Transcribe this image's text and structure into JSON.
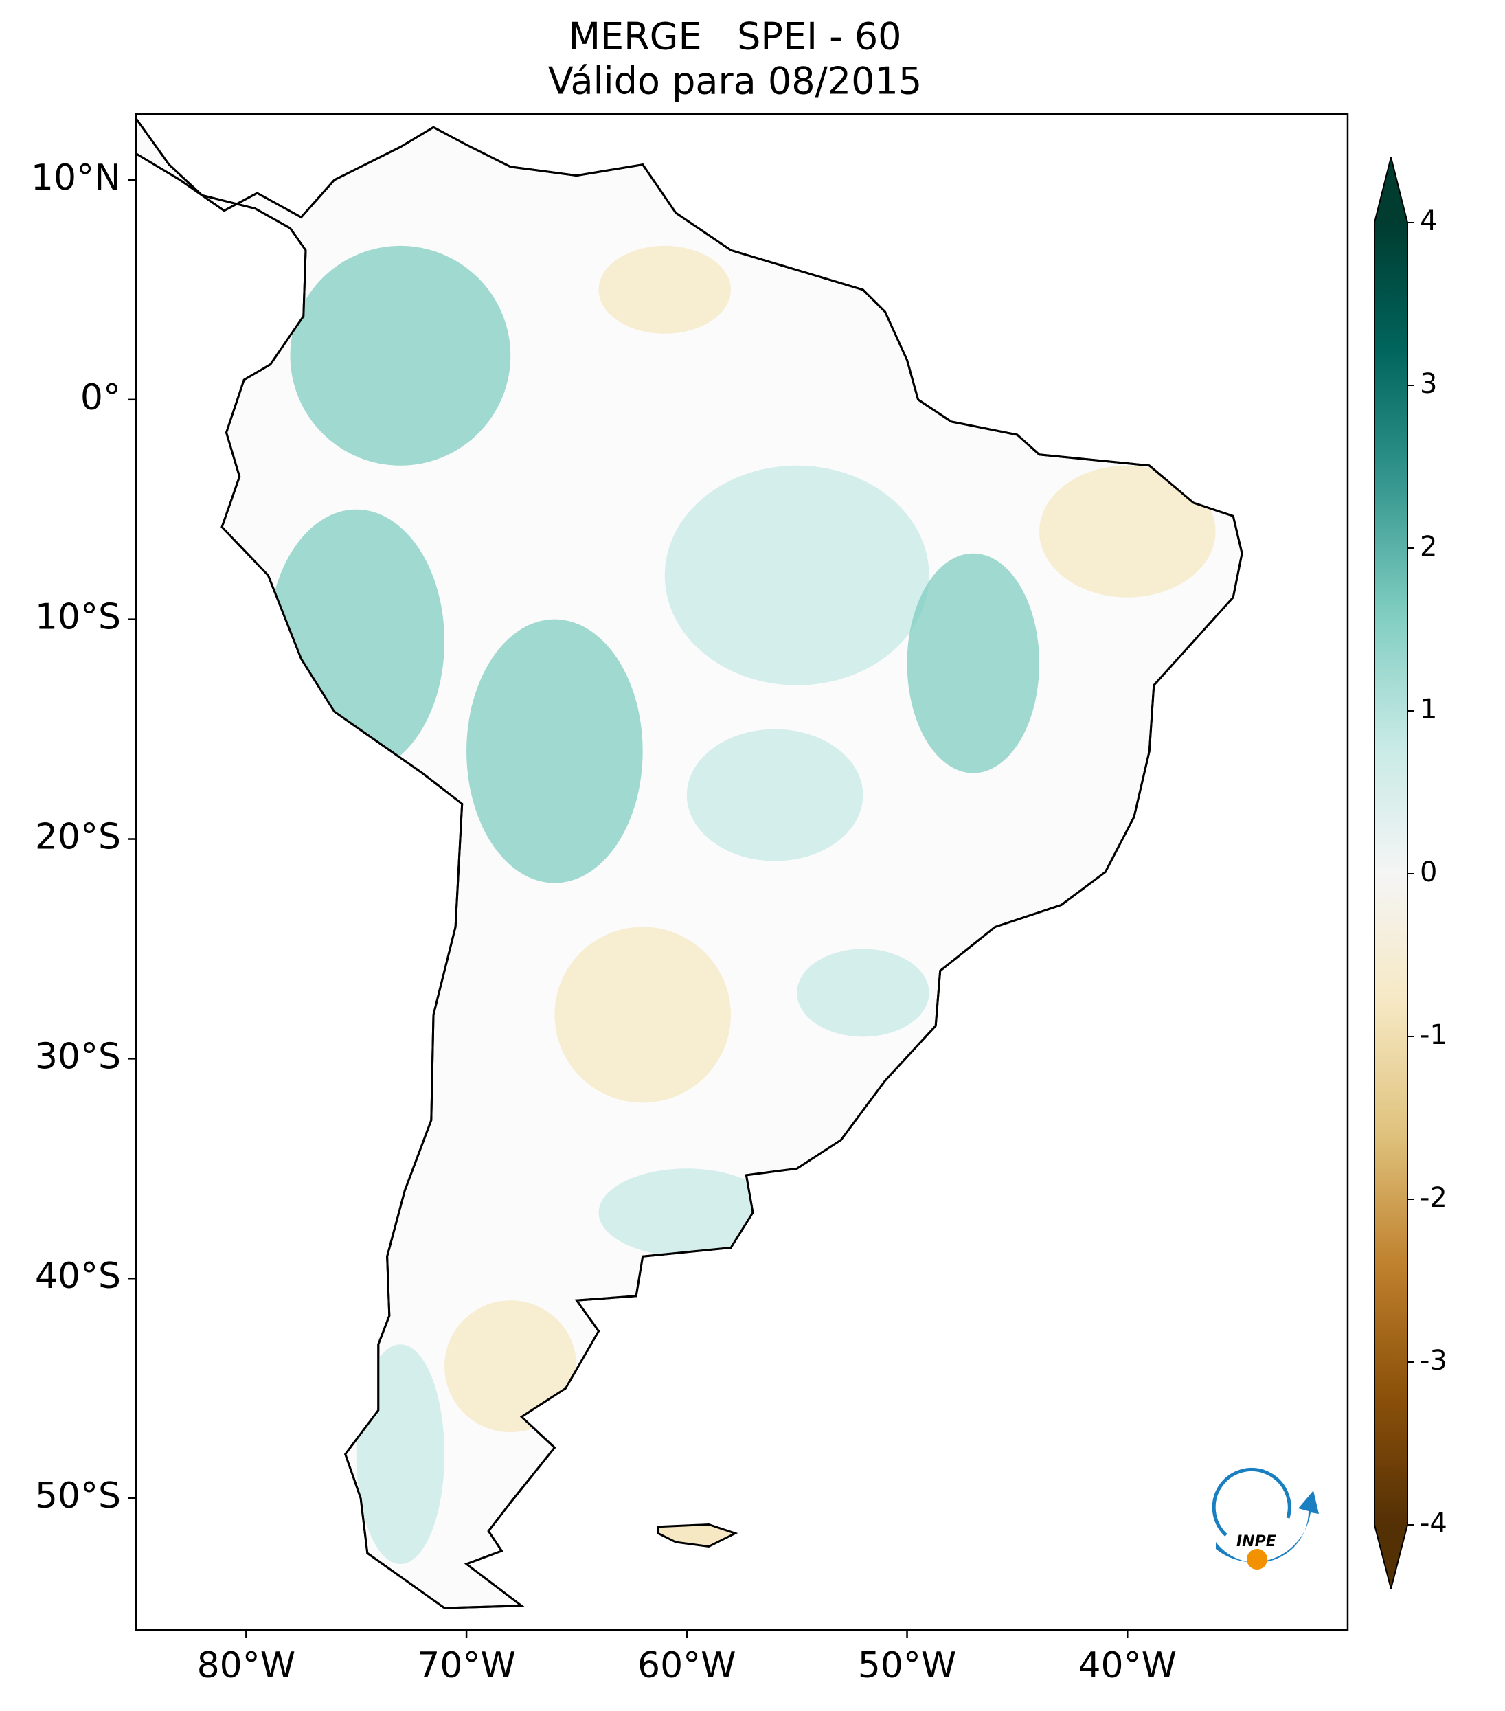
{
  "chart_data": {
    "type": "map",
    "title": "MERGE   SPEI - 60",
    "subtitle": "Válido para 08/2015",
    "xlim": [
      -85,
      -30
    ],
    "ylim": [
      -56,
      13
    ],
    "xticks": [
      {
        "value": -80,
        "label": "80°W"
      },
      {
        "value": -70,
        "label": "70°W"
      },
      {
        "value": -60,
        "label": "60°W"
      },
      {
        "value": -50,
        "label": "50°W"
      },
      {
        "value": -40,
        "label": "40°W"
      }
    ],
    "yticks": [
      {
        "value": 10,
        "label": "10°N"
      },
      {
        "value": 0,
        "label": "0°"
      },
      {
        "value": -10,
        "label": "10°S"
      },
      {
        "value": -20,
        "label": "20°S"
      },
      {
        "value": -30,
        "label": "30°S"
      },
      {
        "value": -40,
        "label": "40°S"
      },
      {
        "value": -50,
        "label": "50°S"
      }
    ],
    "colorbar": {
      "lim": [
        -4,
        4
      ],
      "ticks": [
        -4,
        -3,
        -2,
        -1,
        0,
        1,
        2,
        3,
        4
      ],
      "colors": [
        "#543005",
        "#8c510a",
        "#bf812d",
        "#dfc27d",
        "#f6e8c3",
        "#f5f5f5",
        "#c7eae5",
        "#80cdc1",
        "#35978f",
        "#01665e",
        "#003c30"
      ]
    },
    "logo": "INPE"
  }
}
